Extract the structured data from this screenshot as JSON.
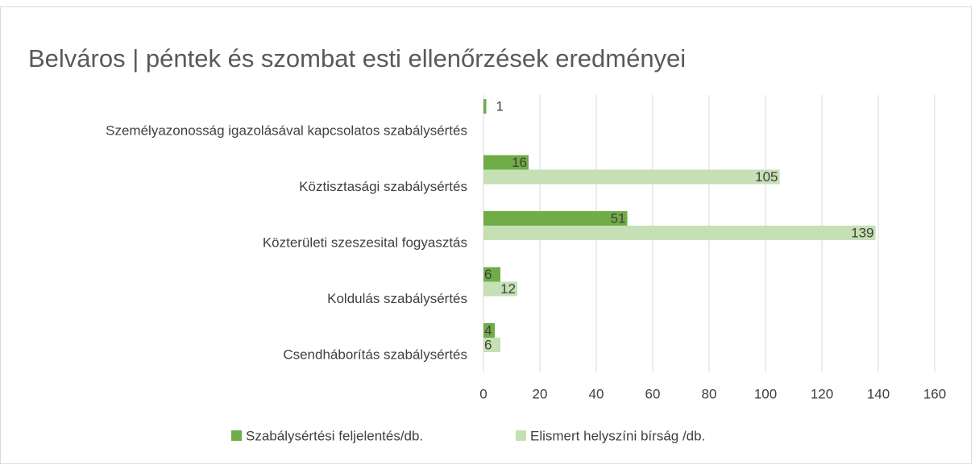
{
  "chart_data": {
    "type": "hbar",
    "title": "Belváros | péntek és szombat esti ellenőrzések eredményei",
    "categories": [
      "Személyazonosság igazolásával kapcsolatos szabálysértés",
      "Köztisztasági szabálysértés",
      "Közterületi szeszesital fogyasztás",
      "Koldulás szabálysértés",
      "Csendháborítás szabálysértés"
    ],
    "series": [
      {
        "name": "Szabálysértési feljelentés/db.",
        "color": "#70ad47",
        "values": [
          1,
          16,
          51,
          6,
          4
        ]
      },
      {
        "name": "Elismert helyszíni bírság /db.",
        "color": "#c5e0b4",
        "values": [
          null,
          105,
          139,
          12,
          6
        ]
      }
    ],
    "xlim": [
      0,
      160
    ],
    "xticks": [
      0,
      20,
      40,
      60,
      80,
      100,
      120,
      140,
      160
    ],
    "grid": true,
    "legend": "bottom"
  }
}
